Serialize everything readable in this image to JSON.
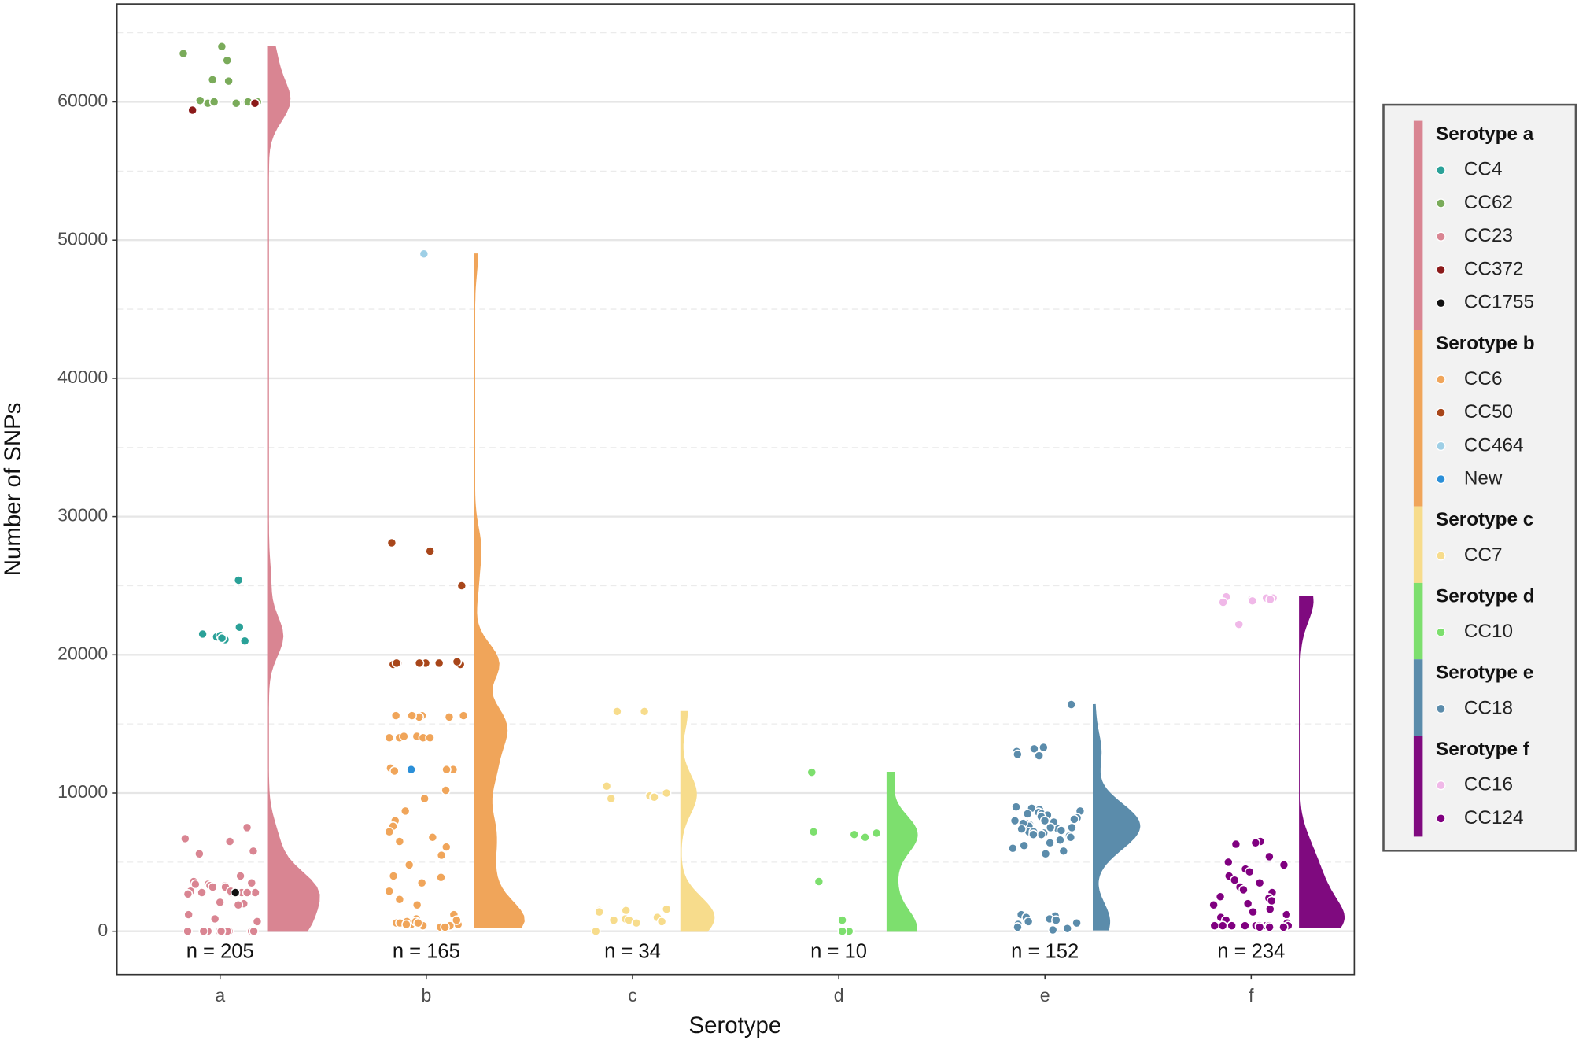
{
  "chart_data": {
    "type": "raincloud",
    "x_label": "Serotype",
    "y_label": "Number of SNPs",
    "ylim": [
      -3130,
      67080
    ],
    "yticks": [
      0,
      10000,
      20000,
      30000,
      40000,
      50000,
      60000
    ],
    "minor_yticks": [
      5000,
      15000,
      25000,
      35000,
      45000,
      55000,
      65000
    ],
    "grid": true,
    "legend_position": "right",
    "groups": [
      {
        "name": "Serotype a",
        "category": "a",
        "n_label": "n = 205",
        "color": "#d98592",
        "series": [
          {
            "name": "CC4",
            "color": "#2aa198",
            "values": [
              25400,
              21100,
              21300,
              21500,
              21000,
              22000,
              21400,
              21200
            ]
          },
          {
            "name": "CC62",
            "color": "#7aab5a",
            "values": [
              64000,
              63500,
              63000,
              61500,
              61600,
              60000,
              59900,
              60000,
              60100,
              60000,
              59900,
              60000
            ]
          },
          {
            "name": "CC23",
            "color": "#d98592",
            "values": [
              7500,
              6700,
              6500,
              5800,
              5600,
              4000,
              3600,
              3500,
              3400,
              3400,
              3300,
              3300,
              3200,
              3200,
              2900,
              2800,
              2800,
              2800,
              2800,
              2800,
              2800,
              2900,
              2700,
              2100,
              2000,
              1900,
              1200,
              900,
              700,
              0,
              0,
              0,
              0,
              0,
              0,
              0,
              0,
              0,
              0,
              0,
              0,
              0
            ]
          },
          {
            "name": "CC372",
            "color": "#8b1a1a",
            "values": [
              59900,
              59400
            ]
          },
          {
            "name": "CC1755",
            "color": "#111111",
            "values": [
              2800
            ]
          }
        ]
      },
      {
        "name": "Serotype b",
        "category": "b",
        "n_label": "n = 165",
        "color": "#f0a55a",
        "series": [
          {
            "name": "CC6",
            "color": "#f0a55a",
            "values": [
              15600,
              15600,
              15600,
              15500,
              15500,
              15600,
              14000,
              14100,
              14000,
              14000,
              14100,
              14000,
              11700,
              11700,
              11800,
              11600,
              10200,
              9600,
              8700,
              8000,
              7600,
              7200,
              6800,
              6500,
              6100,
              5500,
              4800,
              4000,
              3900,
              3500,
              2900,
              2300,
              1900,
              1200,
              900,
              700,
              600,
              500,
              400,
              300,
              800,
              600,
              500,
              400,
              300,
              700,
              600,
              500
            ]
          },
          {
            "name": "CC50",
            "color": "#a8461a",
            "values": [
              28100,
              27500,
              25000,
              19400,
              19400,
              19300,
              19400,
              19300,
              19400,
              19500,
              19400
            ]
          },
          {
            "name": "CC464",
            "color": "#9ecfe6",
            "values": [
              49000
            ]
          },
          {
            "name": "New",
            "color": "#2b8fd8",
            "values": [
              11700
            ]
          }
        ]
      },
      {
        "name": "Serotype c",
        "category": "c",
        "n_label": "n = 34",
        "color": "#f7dc8c",
        "series": [
          {
            "name": "CC7",
            "color": "#f7dc8c",
            "values": [
              15900,
              15900,
              10500,
              10000,
              9800,
              9600,
              9700,
              1600,
              1500,
              1500,
              1400,
              1000,
              900,
              800,
              800,
              700,
              600,
              0
            ]
          }
        ]
      },
      {
        "name": "Serotype d",
        "category": "d",
        "n_label": "n = 10",
        "color": "#7ddf6e",
        "series": [
          {
            "name": "CC10",
            "color": "#7ddf6e",
            "values": [
              11500,
              7200,
              7100,
              7000,
              6800,
              3600,
              800,
              0,
              0,
              0
            ]
          }
        ]
      },
      {
        "name": "Serotype e",
        "category": "e",
        "n_label": "n = 152",
        "color": "#5b8cab",
        "series": [
          {
            "name": "CC18",
            "color": "#5b8cab",
            "values": [
              16400,
              13300,
              13200,
              13000,
              12800,
              12700,
              9000,
              8900,
              8800,
              8700,
              8600,
              8500,
              8400,
              8300,
              8200,
              8100,
              8000,
              7900,
              7800,
              7700,
              7600,
              7500,
              7400,
              7300,
              7200,
              7100,
              7000,
              6900,
              6800,
              6600,
              6400,
              6200,
              6000,
              5800,
              5600,
              8500,
              8000,
              7500,
              7200,
              7800,
              7400,
              7000,
              1200,
              1100,
              1000,
              900,
              800,
              700,
              600,
              500,
              300,
              200,
              100
            ]
          }
        ]
      },
      {
        "name": "Serotype f",
        "category": "f",
        "n_label": "n = 234",
        "color": "#7f0a7f",
        "series": [
          {
            "name": "CC16",
            "color": "#f0b8e8",
            "values": [
              24200,
              24100,
              24100,
              24000,
              24000,
              23900,
              23800,
              22200
            ]
          },
          {
            "name": "CC124",
            "color": "#800080",
            "values": [
              6500,
              6400,
              6300,
              5400,
              5000,
              4800,
              4500,
              4300,
              4000,
              3700,
              3500,
              3200,
              3000,
              2800,
              2500,
              2400,
              2200,
              2000,
              1900,
              1600,
              1400,
              1200,
              1000,
              800,
              600,
              400,
              400,
              400,
              400,
              400,
              400,
              400,
              400,
              400,
              400,
              400,
              400,
              300,
              300,
              300
            ]
          }
        ]
      }
    ]
  }
}
